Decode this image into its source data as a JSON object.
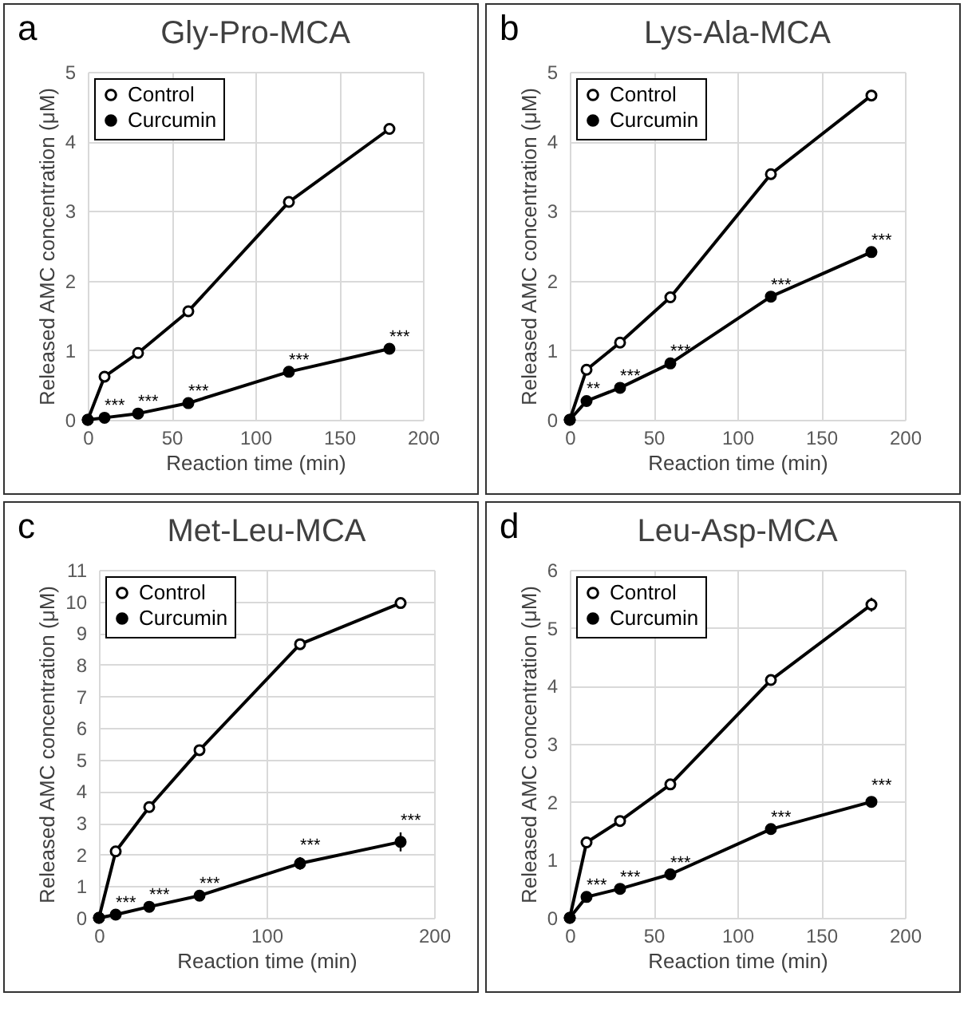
{
  "chart_data": [
    {
      "type": "line",
      "title": "Gly-Pro-MCA",
      "xlabel": "Reaction time (min)",
      "ylabel": "Released AMC concentration (μM)",
      "x": [
        0,
        10,
        30,
        60,
        120,
        180
      ],
      "xlim": [
        0,
        200
      ],
      "xticks": [
        0,
        50,
        100,
        150,
        200
      ],
      "ylim": [
        0,
        5
      ],
      "yticks": [
        0,
        1,
        2,
        3,
        4,
        5
      ],
      "grid": true,
      "legend": "top left",
      "marker": "circle",
      "line_style": "solid",
      "series": [
        {
          "name": "Control",
          "color": "#000000",
          "values": [
            0,
            0.62,
            0.96,
            1.56,
            3.13,
            4.18
          ]
        },
        {
          "name": "Curcumin",
          "color": "#000000",
          "values": [
            0,
            0.03,
            0.09,
            0.24,
            0.69,
            1.02
          ]
        }
      ],
      "annotations": [
        {
          "text": "a"
        },
        {
          "text": "***",
          "x": 10,
          "y": 0.03
        },
        {
          "text": "***",
          "x": 30,
          "y": 0.09
        },
        {
          "text": "***",
          "x": 60,
          "y": 0.24
        },
        {
          "text": "***",
          "x": 120,
          "y": 0.69
        },
        {
          "text": "***",
          "x": 180,
          "y": 1.02
        }
      ]
    },
    {
      "type": "line",
      "title": "Lys-Ala-MCA",
      "xlabel": "Reaction time (min)",
      "ylabel": "Released AMC concentration (μM)",
      "x": [
        0,
        10,
        30,
        60,
        120,
        180
      ],
      "xlim": [
        0,
        200
      ],
      "xticks": [
        0,
        50,
        100,
        150,
        200
      ],
      "ylim": [
        0,
        5
      ],
      "yticks": [
        0,
        1,
        2,
        3,
        4,
        5
      ],
      "grid": true,
      "legend": "top left",
      "marker": "circle",
      "line_style": "solid",
      "series": [
        {
          "name": "Control",
          "color": "#000000",
          "values": [
            0,
            0.72,
            1.11,
            1.76,
            3.53,
            4.66
          ]
        },
        {
          "name": "Curcumin",
          "color": "#000000",
          "values": [
            0,
            0.27,
            0.46,
            0.81,
            1.77,
            2.41
          ]
        }
      ],
      "annotations": [
        {
          "text": "b"
        },
        {
          "text": "**",
          "x": 10,
          "y": 0.27
        },
        {
          "text": "***",
          "x": 30,
          "y": 0.46
        },
        {
          "text": "***",
          "x": 60,
          "y": 0.81
        },
        {
          "text": "***",
          "x": 120,
          "y": 1.77
        },
        {
          "text": "***",
          "x": 180,
          "y": 2.41
        }
      ]
    },
    {
      "type": "line",
      "title": "Met-Leu-MCA",
      "xlabel": "Reaction time (min)",
      "ylabel": "Released AMC concentration (μM)",
      "x": [
        0,
        10,
        30,
        60,
        120,
        180
      ],
      "xlim": [
        0,
        200
      ],
      "xticks": [
        0,
        100,
        200
      ],
      "ylim": [
        0,
        11
      ],
      "yticks": [
        0,
        1,
        2,
        3,
        4,
        5,
        6,
        7,
        8,
        9,
        10,
        11
      ],
      "grid": true,
      "legend": "top left",
      "marker": "circle",
      "line_style": "solid",
      "series": [
        {
          "name": "Control",
          "color": "#000000",
          "values": [
            0,
            2.1,
            3.5,
            5.3,
            8.65,
            9.95
          ]
        },
        {
          "name": "Curcumin",
          "color": "#000000",
          "values": [
            0,
            0.1,
            0.35,
            0.7,
            1.72,
            2.4
          ],
          "errors": [
            null,
            null,
            null,
            null,
            0.2,
            0.3
          ]
        }
      ],
      "annotations": [
        {
          "text": "c"
        },
        {
          "text": "***",
          "x": 10,
          "y": 0.1
        },
        {
          "text": "***",
          "x": 30,
          "y": 0.35
        },
        {
          "text": "***",
          "x": 60,
          "y": 0.7
        },
        {
          "text": "***",
          "x": 120,
          "y": 1.92
        },
        {
          "text": "***",
          "x": 180,
          "y": 2.7
        }
      ]
    },
    {
      "type": "line",
      "title": "Leu-Asp-MCA",
      "xlabel": "Reaction time (min)",
      "ylabel": "Released AMC concentration (μM)",
      "x": [
        0,
        10,
        30,
        60,
        120,
        180
      ],
      "xlim": [
        0,
        200
      ],
      "xticks": [
        0,
        50,
        100,
        150,
        200
      ],
      "ylim": [
        0,
        6
      ],
      "yticks": [
        0,
        1,
        2,
        3,
        4,
        5,
        6
      ],
      "grid": true,
      "legend": "top left",
      "marker": "circle",
      "line_style": "solid",
      "series": [
        {
          "name": "Control",
          "color": "#000000",
          "values": [
            0,
            1.3,
            1.67,
            2.3,
            4.1,
            5.4
          ],
          "errors": [
            null,
            null,
            null,
            null,
            null,
            0.12
          ]
        },
        {
          "name": "Curcumin",
          "color": "#000000",
          "values": [
            0,
            0.36,
            0.5,
            0.75,
            1.53,
            2.0
          ],
          "errors": [
            null,
            null,
            null,
            null,
            null,
            0.08
          ]
        }
      ],
      "annotations": [
        {
          "text": "d"
        },
        {
          "text": "***",
          "x": 10,
          "y": 0.36
        },
        {
          "text": "***",
          "x": 30,
          "y": 0.5
        },
        {
          "text": "***",
          "x": 60,
          "y": 0.75
        },
        {
          "text": "***",
          "x": 120,
          "y": 1.53
        },
        {
          "text": "***",
          "x": 180,
          "y": 2.08
        }
      ]
    }
  ]
}
